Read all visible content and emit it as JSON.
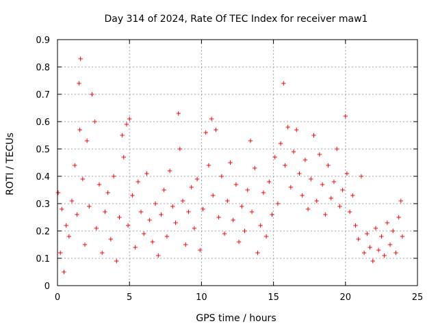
{
  "chart_data": {
    "type": "scatter",
    "title": "Day 314 of 2024, Rate Of TEC Index for receiver maw1",
    "xlabel": "GPS time / hours",
    "ylabel": "ROTI / TECUs",
    "xlim": [
      0,
      25
    ],
    "ylim": [
      0,
      0.9
    ],
    "xticks": [
      "0",
      "5",
      "10",
      "15",
      "20",
      "25"
    ],
    "yticks": [
      "0",
      "0.1",
      "0.2",
      "0.3",
      "0.4",
      "0.5",
      "0.6",
      "0.7",
      "0.8",
      "0.9"
    ],
    "grid": true,
    "marker": "+",
    "color": "#ff0000",
    "series": [
      {
        "name": "maw1",
        "x": [
          0.05,
          0.2,
          0.3,
          0.45,
          0.6,
          0.8,
          1.0,
          1.2,
          1.35,
          1.5,
          1.55,
          1.6,
          1.75,
          1.9,
          2.05,
          2.2,
          2.4,
          2.6,
          2.7,
          2.9,
          3.1,
          3.3,
          3.5,
          3.7,
          3.9,
          4.1,
          4.3,
          4.5,
          4.6,
          4.8,
          4.9,
          5.0,
          5.2,
          5.4,
          5.6,
          5.8,
          6.0,
          6.2,
          6.4,
          6.6,
          6.8,
          7.0,
          7.2,
          7.4,
          7.6,
          7.8,
          8.0,
          8.2,
          8.4,
          8.5,
          8.7,
          8.9,
          9.1,
          9.3,
          9.5,
          9.7,
          9.9,
          10.1,
          10.3,
          10.5,
          10.7,
          10.8,
          11.0,
          11.2,
          11.4,
          11.6,
          11.8,
          12.0,
          12.2,
          12.4,
          12.6,
          12.8,
          13.0,
          13.2,
          13.4,
          13.5,
          13.7,
          13.9,
          14.1,
          14.3,
          14.5,
          14.7,
          14.9,
          15.1,
          15.3,
          15.5,
          15.7,
          15.8,
          16.0,
          16.2,
          16.4,
          16.6,
          16.8,
          17.0,
          17.2,
          17.4,
          17.6,
          17.8,
          18.0,
          18.2,
          18.4,
          18.6,
          18.8,
          19.0,
          19.2,
          19.4,
          19.6,
          19.8,
          20.0,
          20.1,
          20.3,
          20.5,
          20.7,
          20.9,
          21.1,
          21.3,
          21.5,
          21.7,
          21.9,
          22.1,
          22.3,
          22.5,
          22.7,
          22.9,
          23.1,
          23.3,
          23.5,
          23.7,
          23.85,
          23.95
        ],
        "y": [
          0.34,
          0.12,
          0.28,
          0.05,
          0.22,
          0.18,
          0.31,
          0.44,
          0.26,
          0.74,
          0.57,
          0.83,
          0.39,
          0.15,
          0.53,
          0.29,
          0.7,
          0.6,
          0.21,
          0.37,
          0.12,
          0.27,
          0.34,
          0.17,
          0.4,
          0.09,
          0.25,
          0.55,
          0.47,
          0.59,
          0.22,
          0.61,
          0.33,
          0.14,
          0.38,
          0.27,
          0.19,
          0.41,
          0.24,
          0.16,
          0.3,
          0.11,
          0.26,
          0.35,
          0.18,
          0.42,
          0.29,
          0.23,
          0.63,
          0.5,
          0.31,
          0.15,
          0.27,
          0.36,
          0.21,
          0.39,
          0.13,
          0.28,
          0.56,
          0.44,
          0.61,
          0.33,
          0.57,
          0.25,
          0.4,
          0.19,
          0.31,
          0.45,
          0.24,
          0.37,
          0.16,
          0.29,
          0.2,
          0.35,
          0.53,
          0.27,
          0.43,
          0.12,
          0.22,
          0.34,
          0.18,
          0.38,
          0.26,
          0.47,
          0.3,
          0.52,
          0.74,
          0.44,
          0.58,
          0.36,
          0.49,
          0.57,
          0.41,
          0.33,
          0.46,
          0.28,
          0.39,
          0.55,
          0.31,
          0.48,
          0.37,
          0.26,
          0.44,
          0.32,
          0.38,
          0.5,
          0.29,
          0.35,
          0.62,
          0.41,
          0.27,
          0.33,
          0.22,
          0.17,
          0.4,
          0.12,
          0.19,
          0.14,
          0.09,
          0.21,
          0.13,
          0.18,
          0.11,
          0.23,
          0.15,
          0.2,
          0.12,
          0.25,
          0.31,
          0.18
        ]
      }
    ]
  }
}
